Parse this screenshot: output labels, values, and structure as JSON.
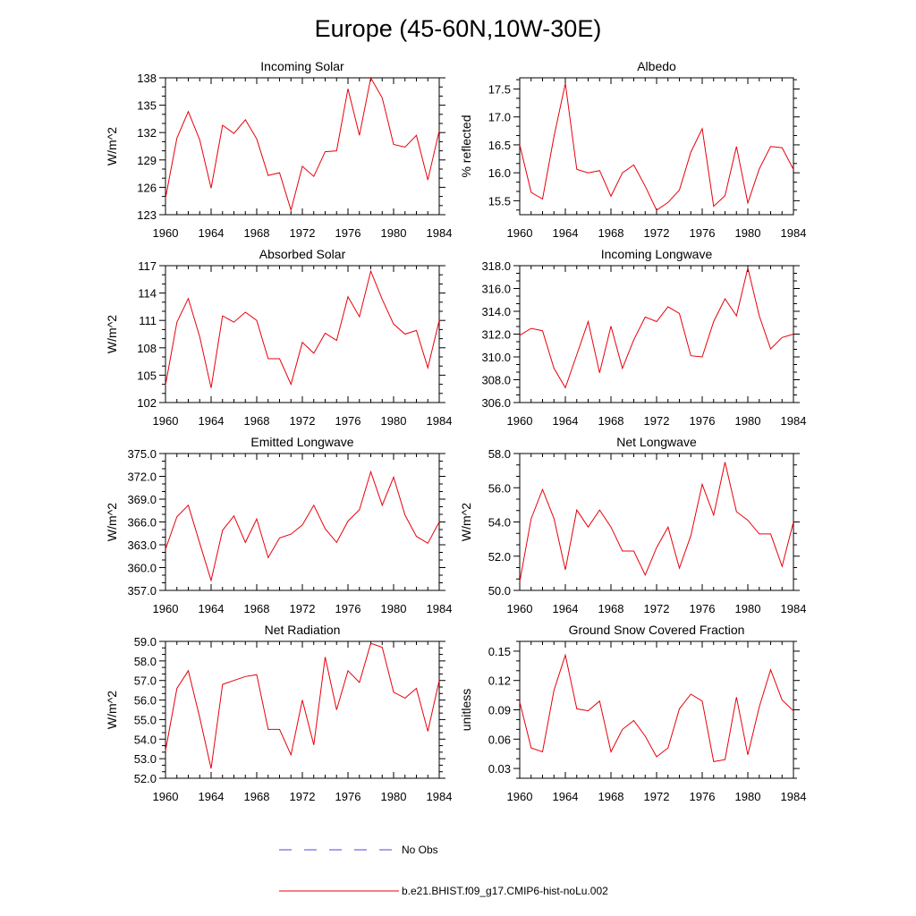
{
  "main_title": "Europe (45-60N,10W-30E)",
  "legend": [
    {
      "label": "No Obs",
      "color": "#4a4ad8",
      "style": "dashed"
    },
    {
      "label": "b.e21.BHIST.f09_g17.CMIP6-hist-noLu.002",
      "color": "#e8000b",
      "style": "solid"
    }
  ],
  "chart_data": [
    {
      "type": "line",
      "title": "Incoming Solar",
      "ylabel": "W/m^2",
      "x": [
        1960,
        1961,
        1962,
        1963,
        1964,
        1965,
        1966,
        1967,
        1968,
        1969,
        1970,
        1971,
        1972,
        1973,
        1974,
        1975,
        1976,
        1977,
        1978,
        1979,
        1980,
        1981,
        1982,
        1983,
        1984
      ],
      "values": [
        124.8,
        131.4,
        134.3,
        131.2,
        125.9,
        132.8,
        131.9,
        133.4,
        131.3,
        127.3,
        127.6,
        123.5,
        128.3,
        127.2,
        129.9,
        130.0,
        136.8,
        131.7,
        138.0,
        135.8,
        130.7,
        130.4,
        131.7,
        126.8,
        132.2
      ],
      "xlim": [
        1960,
        1984
      ],
      "ylim": [
        123,
        138
      ],
      "xticks": [
        "1960",
        "1964",
        "1968",
        "1972",
        "1976",
        "1980",
        "1984"
      ],
      "yticks": [
        "123",
        "126",
        "129",
        "132",
        "135",
        "138"
      ]
    },
    {
      "type": "line",
      "title": "Albedo",
      "ylabel": "% reflected",
      "x": [
        1960,
        1961,
        1962,
        1963,
        1964,
        1965,
        1966,
        1967,
        1968,
        1969,
        1970,
        1971,
        1972,
        1973,
        1974,
        1975,
        1976,
        1977,
        1978,
        1979,
        1980,
        1981,
        1982,
        1983,
        1984
      ],
      "values": [
        16.5,
        15.65,
        15.53,
        16.65,
        17.6,
        16.06,
        16.0,
        16.04,
        15.58,
        16.0,
        16.14,
        15.76,
        15.33,
        15.47,
        15.69,
        16.37,
        16.79,
        15.4,
        15.59,
        16.47,
        15.46,
        16.07,
        16.47,
        16.45,
        16.06
      ],
      "xlim": [
        1960,
        1984
      ],
      "ylim": [
        15.25,
        17.7
      ],
      "xticks": [
        "1960",
        "1964",
        "1968",
        "1972",
        "1976",
        "1980",
        "1984"
      ],
      "yticks": [
        "15.5",
        "16.0",
        "16.5",
        "17.0",
        "17.5"
      ]
    },
    {
      "type": "line",
      "title": "Absorbed Solar",
      "ylabel": "W/m^2",
      "x": [
        1960,
        1961,
        1962,
        1963,
        1964,
        1965,
        1966,
        1967,
        1968,
        1969,
        1970,
        1971,
        1972,
        1973,
        1974,
        1975,
        1976,
        1977,
        1978,
        1979,
        1980,
        1981,
        1982,
        1983,
        1984
      ],
      "values": [
        103.9,
        110.8,
        113.4,
        109.2,
        103.6,
        111.5,
        110.8,
        111.9,
        111.0,
        106.8,
        106.8,
        104.0,
        108.6,
        107.4,
        109.6,
        108.8,
        113.6,
        111.4,
        116.4,
        113.3,
        110.6,
        109.5,
        109.9,
        105.8,
        111.0
      ],
      "xlim": [
        1960,
        1984
      ],
      "ylim": [
        102,
        117
      ],
      "xticks": [
        "1960",
        "1964",
        "1968",
        "1972",
        "1976",
        "1980",
        "1984"
      ],
      "yticks": [
        "102",
        "105",
        "108",
        "111",
        "114",
        "117"
      ]
    },
    {
      "type": "line",
      "title": "Incoming Longwave",
      "ylabel": "",
      "x": [
        1960,
        1961,
        1962,
        1963,
        1964,
        1965,
        1966,
        1967,
        1968,
        1969,
        1970,
        1971,
        1972,
        1973,
        1974,
        1975,
        1976,
        1977,
        1978,
        1979,
        1980,
        1981,
        1982,
        1983,
        1984
      ],
      "values": [
        311.9,
        312.5,
        312.3,
        309.0,
        307.3,
        310.2,
        313.1,
        308.6,
        312.7,
        309.0,
        311.5,
        313.5,
        313.1,
        314.4,
        313.8,
        310.1,
        310.0,
        313.1,
        315.1,
        313.6,
        317.8,
        313.6,
        310.7,
        311.7,
        312.0
      ],
      "xlim": [
        1960,
        1984
      ],
      "ylim": [
        306,
        318
      ],
      "xticks": [
        "1960",
        "1964",
        "1968",
        "1972",
        "1976",
        "1980",
        "1984"
      ],
      "yticks": [
        "306.0",
        "308.0",
        "310.0",
        "312.0",
        "314.0",
        "316.0",
        "318.0"
      ]
    },
    {
      "type": "line",
      "title": "Emitted Longwave",
      "ylabel": "W/m^2",
      "x": [
        1960,
        1961,
        1962,
        1963,
        1964,
        1965,
        1966,
        1967,
        1968,
        1969,
        1970,
        1971,
        1972,
        1973,
        1974,
        1975,
        1976,
        1977,
        1978,
        1979,
        1980,
        1981,
        1982,
        1983,
        1984
      ],
      "values": [
        362.4,
        366.7,
        368.2,
        363.2,
        358.3,
        364.9,
        366.8,
        363.3,
        366.4,
        361.3,
        363.9,
        364.4,
        365.6,
        368.2,
        365.1,
        363.3,
        366.1,
        367.6,
        372.6,
        368.2,
        371.9,
        366.9,
        364.1,
        363.2,
        366.0
      ],
      "xlim": [
        1960,
        1984
      ],
      "ylim": [
        357,
        375
      ],
      "xticks": [
        "1960",
        "1964",
        "1968",
        "1972",
        "1976",
        "1980",
        "1984"
      ],
      "yticks": [
        "357.0",
        "360.0",
        "363.0",
        "366.0",
        "369.0",
        "372.0",
        "375.0"
      ]
    },
    {
      "type": "line",
      "title": "Net Longwave",
      "ylabel": "W/m^2",
      "x": [
        1960,
        1961,
        1962,
        1963,
        1964,
        1965,
        1966,
        1967,
        1968,
        1969,
        1970,
        1971,
        1972,
        1973,
        1974,
        1975,
        1976,
        1977,
        1978,
        1979,
        1980,
        1981,
        1982,
        1983,
        1984
      ],
      "values": [
        50.5,
        54.2,
        55.9,
        54.2,
        51.2,
        54.7,
        53.7,
        54.7,
        53.7,
        52.3,
        52.3,
        50.9,
        52.5,
        53.7,
        51.3,
        53.2,
        56.2,
        54.4,
        57.5,
        54.6,
        54.1,
        53.3,
        53.3,
        51.4,
        54.0
      ],
      "xlim": [
        1960,
        1984
      ],
      "ylim": [
        50,
        58
      ],
      "xticks": [
        "1960",
        "1964",
        "1968",
        "1972",
        "1976",
        "1980",
        "1984"
      ],
      "yticks": [
        "50.0",
        "52.0",
        "54.0",
        "56.0",
        "58.0"
      ]
    },
    {
      "type": "line",
      "title": "Net Radiation",
      "ylabel": "W/m^2",
      "x": [
        1960,
        1961,
        1962,
        1963,
        1964,
        1965,
        1966,
        1967,
        1968,
        1969,
        1970,
        1971,
        1972,
        1973,
        1974,
        1975,
        1976,
        1977,
        1978,
        1979,
        1980,
        1981,
        1982,
        1983,
        1984
      ],
      "values": [
        53.4,
        56.6,
        57.5,
        55.1,
        52.5,
        56.8,
        57.0,
        57.2,
        57.3,
        54.5,
        54.5,
        53.2,
        56.0,
        53.7,
        58.2,
        55.5,
        57.5,
        56.9,
        58.9,
        58.7,
        56.4,
        56.1,
        56.6,
        54.4,
        57.0
      ],
      "xlim": [
        1960,
        1984
      ],
      "ylim": [
        52,
        59
      ],
      "xticks": [
        "1960",
        "1964",
        "1968",
        "1972",
        "1976",
        "1980",
        "1984"
      ],
      "yticks": [
        "52.0",
        "53.0",
        "54.0",
        "55.0",
        "56.0",
        "57.0",
        "58.0",
        "59.0"
      ]
    },
    {
      "type": "line",
      "title": "Ground Snow Covered Fraction",
      "ylabel": "unitless",
      "x": [
        1960,
        1961,
        1962,
        1963,
        1964,
        1965,
        1966,
        1967,
        1968,
        1969,
        1970,
        1971,
        1972,
        1973,
        1974,
        1975,
        1976,
        1977,
        1978,
        1979,
        1980,
        1981,
        1982,
        1983,
        1984
      ],
      "values": [
        0.098,
        0.051,
        0.047,
        0.11,
        0.146,
        0.091,
        0.089,
        0.099,
        0.047,
        0.07,
        0.079,
        0.063,
        0.042,
        0.051,
        0.091,
        0.106,
        0.099,
        0.037,
        0.039,
        0.103,
        0.044,
        0.093,
        0.131,
        0.1,
        0.089
      ],
      "xlim": [
        1960,
        1984
      ],
      "ylim": [
        0.02,
        0.16
      ],
      "xticks": [
        "1960",
        "1964",
        "1968",
        "1972",
        "1976",
        "1980",
        "1984"
      ],
      "yticks": [
        "0.03",
        "0.06",
        "0.09",
        "0.12",
        "0.15"
      ]
    }
  ]
}
